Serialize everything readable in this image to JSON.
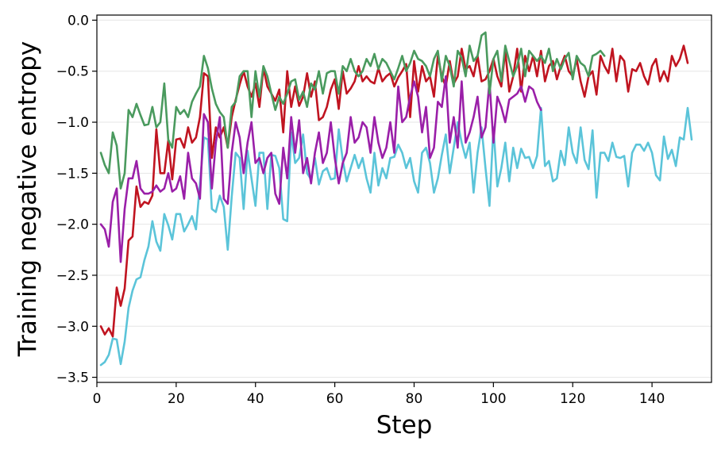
{
  "chart_data": {
    "type": "line",
    "title": "",
    "xlabel": "Step",
    "ylabel": "Training negative entropy",
    "xlim": [
      0,
      155
    ],
    "ylim": [
      -3.55,
      0.05
    ],
    "grid": "horizontal",
    "legend": "none",
    "xticks": [
      0,
      20,
      40,
      60,
      80,
      100,
      120,
      140
    ],
    "xtick_labels": [
      "0",
      "20",
      "40",
      "60",
      "80",
      "100",
      "120",
      "140"
    ],
    "yticks": [
      0.0,
      -0.5,
      -1.0,
      -1.5,
      -2.0,
      -2.5,
      -3.0,
      -3.5
    ],
    "ytick_labels": [
      "0.0",
      "−0.5",
      "−1.0",
      "−1.5",
      "−2.0",
      "−2.5",
      "−3.0",
      "−3.5"
    ],
    "series": [
      {
        "color": "#5bc4d9",
        "x_start": 1,
        "values": [
          -3.38,
          -3.35,
          -3.28,
          -3.12,
          -3.13,
          -3.37,
          -3.15,
          -2.82,
          -2.65,
          -2.54,
          -2.52,
          -2.35,
          -2.22,
          -1.97,
          -2.17,
          -2.26,
          -1.9,
          -2.01,
          -2.15,
          -1.9,
          -1.9,
          -2.07,
          -2.0,
          -1.92,
          -2.05,
          -1.6,
          -1.15,
          -1.17,
          -1.85,
          -1.88,
          -1.72,
          -1.83,
          -2.25,
          -1.73,
          -1.3,
          -1.35,
          -1.85,
          -1.28,
          -1.55,
          -1.82,
          -1.3,
          -1.3,
          -1.85,
          -1.32,
          -1.33,
          -1.45,
          -1.95,
          -1.97,
          -1.1,
          -1.4,
          -1.35,
          -1.12,
          -1.5,
          -1.56,
          -1.35,
          -1.61,
          -1.48,
          -1.45,
          -1.56,
          -1.55,
          -1.07,
          -1.37,
          -1.58,
          -1.45,
          -1.32,
          -1.45,
          -1.35,
          -1.55,
          -1.69,
          -1.3,
          -1.62,
          -1.45,
          -1.55,
          -1.35,
          -1.34,
          -1.22,
          -1.3,
          -1.45,
          -1.35,
          -1.58,
          -1.69,
          -1.3,
          -1.25,
          -1.4,
          -1.69,
          -1.55,
          -1.32,
          -1.12,
          -1.5,
          -1.25,
          -1.0,
          -1.2,
          -1.35,
          -1.2,
          -1.69,
          -1.3,
          -1.05,
          -1.45,
          -1.82,
          -1.05,
          -1.63,
          -1.45,
          -1.2,
          -1.58,
          -1.25,
          -1.45,
          -1.26,
          -1.35,
          -1.34,
          -1.45,
          -1.33,
          -0.86,
          -1.43,
          -1.38,
          -1.58,
          -1.55,
          -1.28,
          -1.42,
          -1.05,
          -1.3,
          -1.4,
          -1.05,
          -1.37,
          -1.46,
          -1.08,
          -1.74,
          -1.3,
          -1.3,
          -1.38,
          -1.2,
          -1.34,
          -1.35,
          -1.33,
          -1.63,
          -1.3,
          -1.22,
          -1.22,
          -1.28,
          -1.2,
          -1.3,
          -1.52,
          -1.57,
          -1.14,
          -1.36,
          -1.27,
          -1.43,
          -1.15,
          -1.17,
          -0.86,
          -1.17
        ]
      },
      {
        "color": "#c01420",
        "x_start": 1,
        "values": [
          -3.0,
          -3.08,
          -3.02,
          -3.1,
          -2.62,
          -2.8,
          -2.63,
          -2.16,
          -2.12,
          -1.63,
          -1.83,
          -1.78,
          -1.8,
          -1.72,
          -1.07,
          -1.5,
          -1.5,
          -1.18,
          -1.56,
          -1.17,
          -1.16,
          -1.25,
          -1.05,
          -1.2,
          -1.15,
          -0.95,
          -0.52,
          -0.55,
          -1.35,
          -1.05,
          -1.15,
          -1.05,
          -1.25,
          -0.95,
          -0.78,
          -0.63,
          -0.5,
          -0.65,
          -0.75,
          -0.62,
          -0.85,
          -0.47,
          -0.65,
          -0.72,
          -0.79,
          -0.68,
          -1.1,
          -0.5,
          -0.85,
          -0.65,
          -0.84,
          -0.75,
          -0.52,
          -0.75,
          -0.6,
          -0.98,
          -0.95,
          -0.85,
          -0.68,
          -0.58,
          -0.87,
          -0.5,
          -0.72,
          -0.67,
          -0.6,
          -0.45,
          -0.6,
          -0.55,
          -0.6,
          -0.62,
          -0.47,
          -0.6,
          -0.55,
          -0.52,
          -0.65,
          -0.56,
          -0.5,
          -0.43,
          -0.95,
          -0.4,
          -0.7,
          -0.45,
          -0.6,
          -0.55,
          -0.75,
          -0.35,
          -0.55,
          -0.65,
          -0.4,
          -0.62,
          -0.55,
          -0.28,
          -0.48,
          -0.45,
          -0.55,
          -0.35,
          -0.6,
          -0.58,
          -0.5,
          -0.38,
          -0.55,
          -0.65,
          -0.3,
          -0.7,
          -0.55,
          -0.28,
          -0.7,
          -0.35,
          -0.5,
          -0.35,
          -0.55,
          -0.3,
          -0.6,
          -0.45,
          -0.4,
          -0.58,
          -0.45,
          -0.35,
          -0.5,
          -0.55,
          -0.38,
          -0.6,
          -0.75,
          -0.55,
          -0.5,
          -0.73,
          -0.35,
          -0.45,
          -0.52,
          -0.28,
          -0.6,
          -0.35,
          -0.4,
          -0.7,
          -0.48,
          -0.5,
          -0.42,
          -0.55,
          -0.63,
          -0.45,
          -0.38,
          -0.6,
          -0.5,
          -0.6,
          -0.35,
          -0.45,
          -0.38,
          -0.25,
          -0.42
        ]
      },
      {
        "color": "#9a1fa8",
        "x_start": 1,
        "values": [
          -2.0,
          -2.05,
          -2.22,
          -1.78,
          -1.65,
          -2.37,
          -1.85,
          -1.55,
          -1.55,
          -1.38,
          -1.65,
          -1.7,
          -1.7,
          -1.68,
          -1.62,
          -1.68,
          -1.65,
          -1.5,
          -1.68,
          -1.65,
          -1.53,
          -1.75,
          -1.3,
          -1.55,
          -1.6,
          -1.75,
          -0.92,
          -1.0,
          -1.65,
          -1.2,
          -0.95,
          -1.75,
          -1.8,
          -1.3,
          -1.0,
          -1.15,
          -1.5,
          -1.2,
          -1.0,
          -1.4,
          -1.35,
          -1.5,
          -1.35,
          -1.3,
          -1.7,
          -1.8,
          -1.25,
          -1.55,
          -0.95,
          -1.3,
          -0.98,
          -1.5,
          -1.35,
          -1.6,
          -1.3,
          -1.1,
          -1.4,
          -1.3,
          -1.0,
          -1.35,
          -1.6,
          -1.4,
          -1.3,
          -0.95,
          -1.2,
          -1.15,
          -1.0,
          -1.05,
          -1.3,
          -0.95,
          -1.2,
          -1.35,
          -1.25,
          -1.0,
          -1.3,
          -0.65,
          -1.0,
          -0.95,
          -0.75,
          -0.6,
          -0.75,
          -1.1,
          -0.85,
          -1.35,
          -1.25,
          -0.8,
          -0.85,
          -0.55,
          -1.2,
          -0.95,
          -1.25,
          -0.6,
          -1.2,
          -1.1,
          -0.95,
          -0.75,
          -1.15,
          -1.05,
          -0.6,
          -1.2,
          -0.75,
          -0.85,
          -1.0,
          -0.78,
          -0.75,
          -0.72,
          -0.65,
          -0.8,
          -0.65,
          -0.68,
          -0.8,
          -0.88
        ]
      },
      {
        "color": "#4a9a5e",
        "x_start": 1,
        "values": [
          -1.3,
          -1.42,
          -1.5,
          -1.1,
          -1.23,
          -1.65,
          -1.5,
          -0.88,
          -0.95,
          -0.82,
          -0.93,
          -1.03,
          -1.02,
          -0.85,
          -1.05,
          -1.0,
          -0.62,
          -1.17,
          -1.25,
          -0.85,
          -0.92,
          -0.88,
          -0.95,
          -0.8,
          -0.72,
          -0.65,
          -0.35,
          -0.47,
          -0.67,
          -0.82,
          -0.9,
          -0.95,
          -1.25,
          -0.85,
          -0.8,
          -0.55,
          -0.5,
          -0.5,
          -0.95,
          -0.5,
          -0.75,
          -0.45,
          -0.55,
          -0.72,
          -0.88,
          -0.75,
          -0.82,
          -0.72,
          -0.6,
          -0.58,
          -0.78,
          -0.7,
          -0.85,
          -0.62,
          -0.68,
          -0.5,
          -0.72,
          -0.52,
          -0.5,
          -0.5,
          -0.72,
          -0.45,
          -0.5,
          -0.38,
          -0.5,
          -0.55,
          -0.5,
          -0.38,
          -0.45,
          -0.33,
          -0.48,
          -0.38,
          -0.42,
          -0.5,
          -0.58,
          -0.47,
          -0.35,
          -0.5,
          -0.42,
          -0.3,
          -0.38,
          -0.4,
          -0.45,
          -0.55,
          -0.38,
          -0.3,
          -0.6,
          -0.35,
          -0.45,
          -0.65,
          -0.3,
          -0.37,
          -0.55,
          -0.25,
          -0.4,
          -0.35,
          -0.15,
          -0.12,
          -0.72,
          -0.38,
          -0.3,
          -0.6,
          -0.25,
          -0.4,
          -0.55,
          -0.45,
          -0.28,
          -0.55,
          -0.3,
          -0.35,
          -0.4,
          -0.35,
          -0.42,
          -0.28,
          -0.5,
          -0.38,
          -0.48,
          -0.38,
          -0.32,
          -0.58,
          -0.35,
          -0.42,
          -0.45,
          -0.55,
          -0.35,
          -0.33,
          -0.3,
          -0.35
        ]
      }
    ]
  }
}
